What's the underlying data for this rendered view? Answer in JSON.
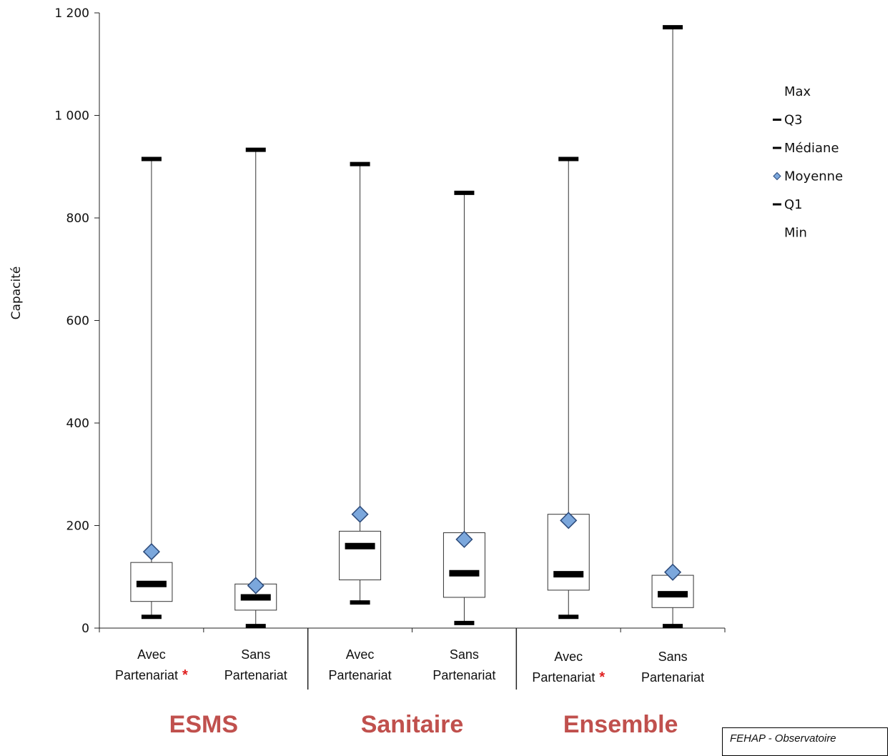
{
  "chart_data": {
    "type": "boxplot",
    "ylabel": "Capacité",
    "ylim": [
      0,
      1200
    ],
    "yticks": [
      {
        "value": 0,
        "label": "0"
      },
      {
        "value": 200,
        "label": "200"
      },
      {
        "value": 400,
        "label": "400"
      },
      {
        "value": 600,
        "label": "600"
      },
      {
        "value": 800,
        "label": "800"
      },
      {
        "value": 1000,
        "label": "1 000"
      },
      {
        "value": 1200,
        "label": "1 200"
      }
    ],
    "categories": [
      {
        "line1": "Avec",
        "line2": "Partenariat",
        "asterisk": "*",
        "group": "ESMS",
        "min": 22,
        "q1": 52,
        "median": 86,
        "mean": 149,
        "q3": 128,
        "max": 915
      },
      {
        "line1": "Sans",
        "line2": "Partenariat",
        "asterisk": "",
        "group": "ESMS",
        "min": 4,
        "q1": 35,
        "median": 60,
        "mean": 83,
        "q3": 86,
        "max": 933
      },
      {
        "line1": "Avec",
        "line2": "Partenariat",
        "asterisk": "",
        "group": "Sanitaire",
        "min": 50,
        "q1": 94,
        "median": 160,
        "mean": 222,
        "q3": 189,
        "max": 905
      },
      {
        "line1": "Sans",
        "line2": "Partenariat",
        "asterisk": "",
        "group": "Sanitaire",
        "min": 10,
        "q1": 60,
        "median": 107,
        "mean": 173,
        "q3": 186,
        "max": 849
      },
      {
        "line1": "Avec",
        "line2": "Partenariat",
        "asterisk": "*",
        "group": "Ensemble",
        "min": 22,
        "q1": 74,
        "median": 105,
        "mean": 210,
        "q3": 222,
        "max": 915
      },
      {
        "line1": "Sans",
        "line2": "Partenariat",
        "asterisk": "",
        "group": "Ensemble",
        "min": 4,
        "q1": 40,
        "median": 66,
        "mean": 109,
        "q3": 103,
        "max": 1172
      }
    ],
    "groups": [
      "ESMS",
      "Sanitaire",
      "Ensemble"
    ],
    "legend": {
      "position": "right",
      "items": [
        {
          "label": "Max",
          "marker": "none"
        },
        {
          "label": "Q3",
          "marker": "dash"
        },
        {
          "label": "Médiane",
          "marker": "dash"
        },
        {
          "label": "Moyenne",
          "marker": "diamond"
        },
        {
          "label": "Q1",
          "marker": "dash"
        },
        {
          "label": "Min",
          "marker": "none"
        }
      ]
    },
    "colors": {
      "mean_fill": "#7BA7DC",
      "mean_stroke": "#2C4A7A",
      "group_label": "#C0504D",
      "asterisk": "#E02020",
      "axis": "#222222"
    },
    "grid": false
  },
  "source_note": "FEHAP - Observatoire"
}
